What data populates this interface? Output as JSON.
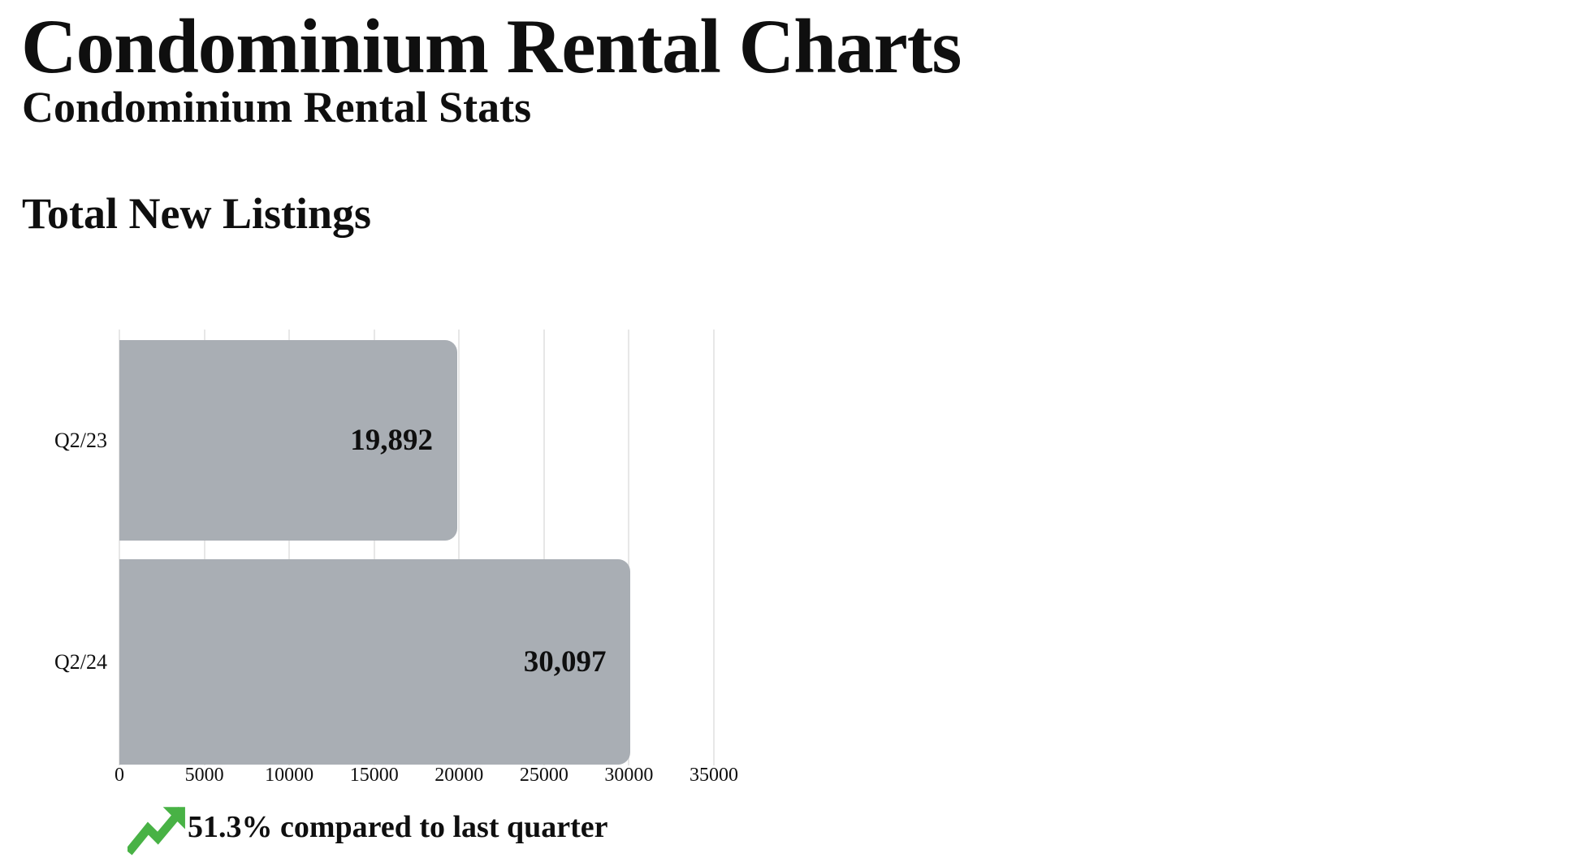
{
  "page": {
    "title": "Condominium Rental Charts",
    "subtitle": "Condominium Rental Stats"
  },
  "section": {
    "heading": "Total New Listings"
  },
  "chart_data": {
    "type": "bar",
    "orientation": "horizontal",
    "title": "Total New Listings",
    "categories": [
      "Q2/23",
      "Q2/24"
    ],
    "values": [
      19892,
      30097
    ],
    "value_labels": [
      "19,892",
      "30,097"
    ],
    "xlabel": "",
    "ylabel": "",
    "xlim": [
      0,
      35000
    ],
    "xticks": [
      0,
      5000,
      10000,
      15000,
      20000,
      25000,
      30000,
      35000
    ],
    "grid": "vertical",
    "legend": "none",
    "bar_color": "#a9aeb4",
    "gridline_color": "#e7e7e7",
    "label_color": "#0f0f0f"
  },
  "footer": {
    "change_text": "51.3% compared to last quarter",
    "trend_icon": "trending-up-icon",
    "trend_color": "#48b245"
  }
}
